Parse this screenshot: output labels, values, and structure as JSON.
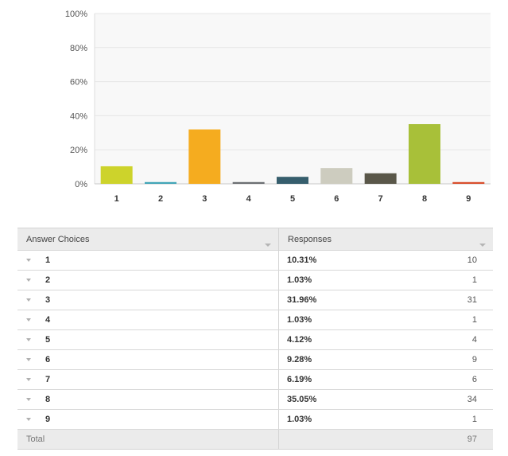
{
  "chart_data": {
    "type": "bar",
    "categories": [
      "1",
      "2",
      "3",
      "4",
      "5",
      "6",
      "7",
      "8",
      "9"
    ],
    "values": [
      10.31,
      1.03,
      31.96,
      1.03,
      4.12,
      9.28,
      6.19,
      35.05,
      1.03
    ],
    "colors": [
      "#cdd32b",
      "#42a5b7",
      "#f5ac1f",
      "#6c6f73",
      "#365e6d",
      "#cdccbf",
      "#5a5749",
      "#a8c039",
      "#d94f2d"
    ],
    "ylim": [
      0,
      100
    ],
    "yticks": [
      "0%",
      "20%",
      "40%",
      "60%",
      "80%",
      "100%"
    ],
    "grid": true,
    "title": "",
    "xlabel": "",
    "ylabel": ""
  },
  "table": {
    "header": {
      "choices": "Answer Choices",
      "responses": "Responses"
    },
    "rows": [
      {
        "choice": "1",
        "percent": "10.31%",
        "count": "10"
      },
      {
        "choice": "2",
        "percent": "1.03%",
        "count": "1"
      },
      {
        "choice": "3",
        "percent": "31.96%",
        "count": "31"
      },
      {
        "choice": "4",
        "percent": "1.03%",
        "count": "1"
      },
      {
        "choice": "5",
        "percent": "4.12%",
        "count": "4"
      },
      {
        "choice": "6",
        "percent": "9.28%",
        "count": "9"
      },
      {
        "choice": "7",
        "percent": "6.19%",
        "count": "6"
      },
      {
        "choice": "8",
        "percent": "35.05%",
        "count": "34"
      },
      {
        "choice": "9",
        "percent": "1.03%",
        "count": "1"
      }
    ],
    "total_label": "Total",
    "total": "97"
  }
}
